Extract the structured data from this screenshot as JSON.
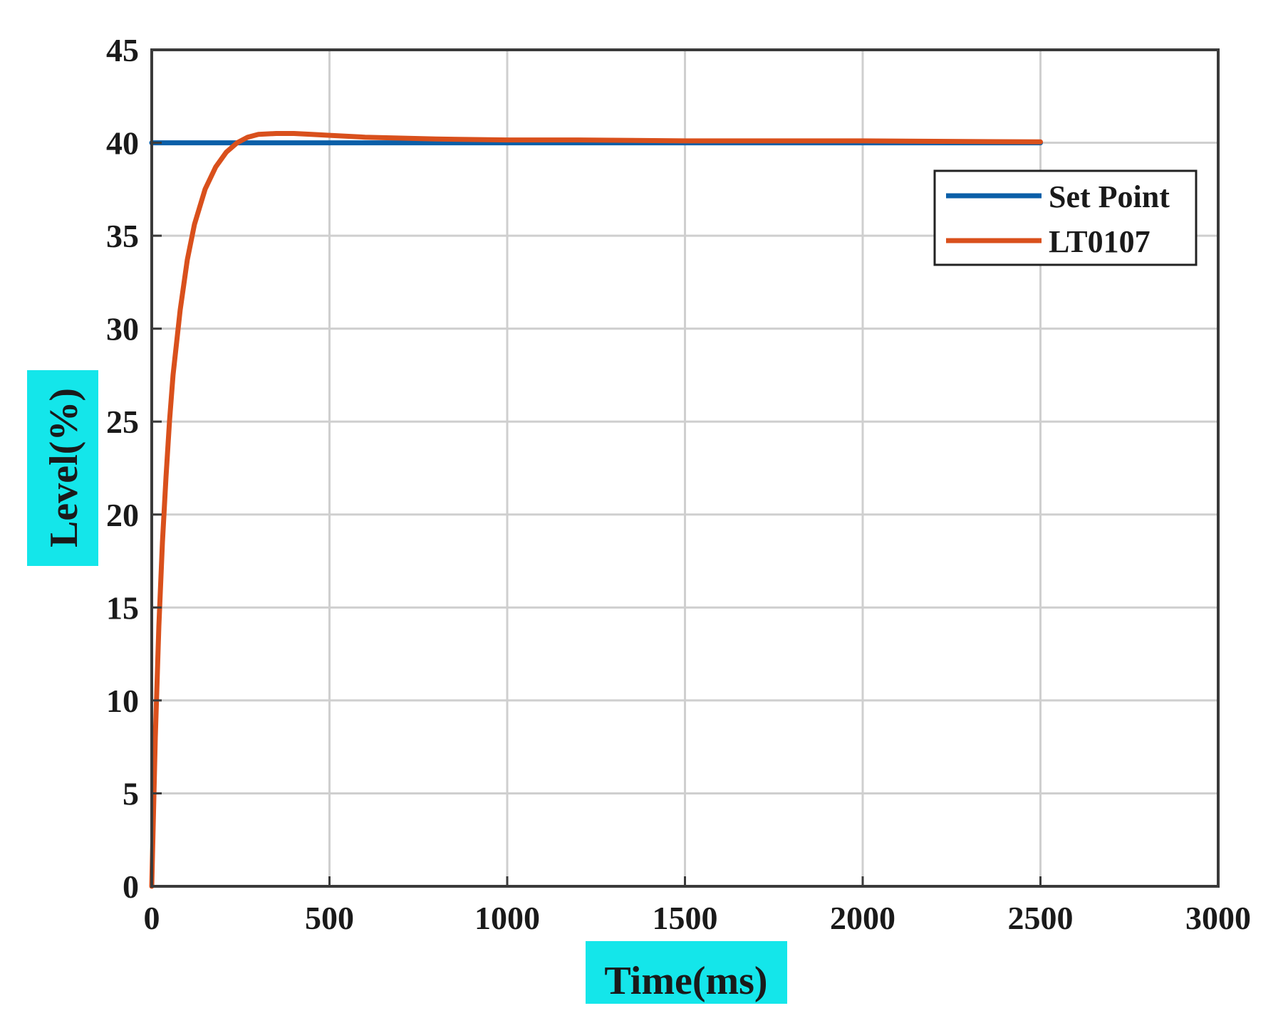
{
  "chart_data": {
    "type": "line",
    "xlabel": "Time(ms)",
    "ylabel": "Level(%)",
    "xlim": [
      0,
      3000
    ],
    "ylim": [
      0,
      45
    ],
    "xticks": [
      "0",
      "500",
      "1000",
      "1500",
      "2000",
      "2500",
      "3000"
    ],
    "yticks": [
      "0",
      "5",
      "10",
      "15",
      "20",
      "25",
      "30",
      "35",
      "40",
      "45"
    ],
    "grid": true,
    "legend_position": "top-right",
    "label_highlight_color": "#14e6ea",
    "series": [
      {
        "name": "Set Point",
        "color": "#0b5fa8",
        "x": [
          0,
          2500
        ],
        "y": [
          40,
          40
        ]
      },
      {
        "name": "LT0107",
        "color": "#d9501c",
        "x": [
          0,
          10,
          20,
          30,
          40,
          50,
          60,
          80,
          100,
          120,
          150,
          180,
          210,
          240,
          270,
          300,
          350,
          400,
          450,
          500,
          600,
          700,
          800,
          1000,
          1200,
          1500,
          2000,
          2500
        ],
        "y": [
          0,
          8,
          14,
          18.5,
          22,
          25,
          27.5,
          31,
          33.7,
          35.6,
          37.5,
          38.7,
          39.5,
          40.0,
          40.3,
          40.45,
          40.5,
          40.5,
          40.45,
          40.4,
          40.3,
          40.25,
          40.2,
          40.15,
          40.15,
          40.1,
          40.1,
          40.05
        ]
      }
    ]
  }
}
